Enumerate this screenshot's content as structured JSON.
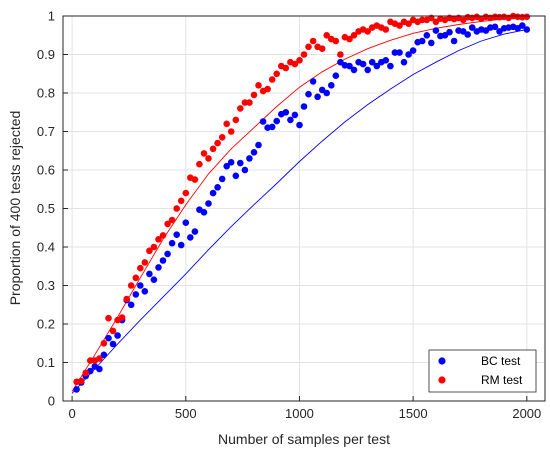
{
  "chart_data": {
    "type": "scatter",
    "title": "",
    "xlabel": "Number of samples per test",
    "ylabel": "Proportion of 400 tests rejected",
    "xlim": [
      -40,
      2080
    ],
    "ylim": [
      0,
      1
    ],
    "xticks": [
      0,
      500,
      1000,
      1500,
      2000
    ],
    "yticks": [
      0,
      0.1,
      0.2,
      0.3,
      0.4,
      0.5,
      0.6,
      0.7,
      0.8,
      0.9,
      1
    ],
    "xtick_labels": [
      "0",
      "500",
      "1000",
      "1500",
      "2000"
    ],
    "ytick_labels": [
      "0",
      "0.1",
      "0.2",
      "0.3",
      "0.4",
      "0.5",
      "0.6",
      "0.7",
      "0.8",
      "0.9",
      "1"
    ],
    "grid": true,
    "legend_position": "bottom-right",
    "series": [
      {
        "name": "BC test",
        "color": "#0000ff",
        "points": [
          [
            20,
            0.03
          ],
          [
            40,
            0.048
          ],
          [
            60,
            0.065
          ],
          [
            80,
            0.078
          ],
          [
            100,
            0.09
          ],
          [
            120,
            0.083
          ],
          [
            140,
            0.12
          ],
          [
            160,
            0.163
          ],
          [
            180,
            0.148
          ],
          [
            200,
            0.17
          ],
          [
            220,
            0.21
          ],
          [
            240,
            0.262
          ],
          [
            260,
            0.25
          ],
          [
            280,
            0.277
          ],
          [
            300,
            0.3
          ],
          [
            320,
            0.285
          ],
          [
            340,
            0.33
          ],
          [
            360,
            0.315
          ],
          [
            380,
            0.347
          ],
          [
            400,
            0.365
          ],
          [
            420,
            0.382
          ],
          [
            440,
            0.41
          ],
          [
            460,
            0.432
          ],
          [
            480,
            0.405
          ],
          [
            500,
            0.463
          ],
          [
            520,
            0.425
          ],
          [
            540,
            0.44
          ],
          [
            560,
            0.497
          ],
          [
            580,
            0.49
          ],
          [
            600,
            0.513
          ],
          [
            620,
            0.54
          ],
          [
            640,
            0.555
          ],
          [
            660,
            0.577
          ],
          [
            680,
            0.61
          ],
          [
            700,
            0.62
          ],
          [
            720,
            0.585
          ],
          [
            740,
            0.618
          ],
          [
            760,
            0.6
          ],
          [
            780,
            0.63
          ],
          [
            800,
            0.646
          ],
          [
            820,
            0.665
          ],
          [
            840,
            0.726
          ],
          [
            860,
            0.71
          ],
          [
            880,
            0.712
          ],
          [
            900,
            0.727
          ],
          [
            920,
            0.745
          ],
          [
            940,
            0.75
          ],
          [
            960,
            0.73
          ],
          [
            980,
            0.743
          ],
          [
            1000,
            0.717
          ],
          [
            1020,
            0.765
          ],
          [
            1040,
            0.797
          ],
          [
            1060,
            0.83
          ],
          [
            1080,
            0.79
          ],
          [
            1100,
            0.808
          ],
          [
            1120,
            0.8
          ],
          [
            1140,
            0.82
          ],
          [
            1160,
            0.845
          ],
          [
            1180,
            0.88
          ],
          [
            1200,
            0.872
          ],
          [
            1220,
            0.87
          ],
          [
            1240,
            0.86
          ],
          [
            1260,
            0.88
          ],
          [
            1280,
            0.875
          ],
          [
            1300,
            0.86
          ],
          [
            1320,
            0.88
          ],
          [
            1340,
            0.87
          ],
          [
            1360,
            0.88
          ],
          [
            1380,
            0.885
          ],
          [
            1400,
            0.87
          ],
          [
            1420,
            0.905
          ],
          [
            1440,
            0.905
          ],
          [
            1460,
            0.88
          ],
          [
            1480,
            0.9
          ],
          [
            1500,
            0.91
          ],
          [
            1520,
            0.932
          ],
          [
            1540,
            0.935
          ],
          [
            1560,
            0.95
          ],
          [
            1580,
            0.93
          ],
          [
            1600,
            0.962
          ],
          [
            1620,
            0.948
          ],
          [
            1640,
            0.95
          ],
          [
            1660,
            0.958
          ],
          [
            1680,
            0.935
          ],
          [
            1700,
            0.962
          ],
          [
            1720,
            0.96
          ],
          [
            1740,
            0.952
          ],
          [
            1760,
            0.97
          ],
          [
            1780,
            0.96
          ],
          [
            1800,
            0.965
          ],
          [
            1820,
            0.962
          ],
          [
            1840,
            0.97
          ],
          [
            1860,
            0.972
          ],
          [
            1880,
            0.96
          ],
          [
            1900,
            0.968
          ],
          [
            1920,
            0.97
          ],
          [
            1940,
            0.972
          ],
          [
            1960,
            0.968
          ],
          [
            1980,
            0.975
          ],
          [
            2000,
            0.965
          ]
        ],
        "fit": [
          [
            0,
            0.02
          ],
          [
            100,
            0.083
          ],
          [
            200,
            0.148
          ],
          [
            300,
            0.21
          ],
          [
            400,
            0.27
          ],
          [
            500,
            0.33
          ],
          [
            600,
            0.393
          ],
          [
            700,
            0.453
          ],
          [
            800,
            0.51
          ],
          [
            900,
            0.565
          ],
          [
            1000,
            0.622
          ],
          [
            1100,
            0.675
          ],
          [
            1200,
            0.725
          ],
          [
            1300,
            0.77
          ],
          [
            1400,
            0.81
          ],
          [
            1500,
            0.848
          ],
          [
            1600,
            0.88
          ],
          [
            1700,
            0.91
          ],
          [
            1800,
            0.935
          ],
          [
            1900,
            0.953
          ],
          [
            2000,
            0.965
          ]
        ]
      },
      {
        "name": "RM test",
        "color": "#ff0000",
        "points": [
          [
            20,
            0.05
          ],
          [
            40,
            0.052
          ],
          [
            60,
            0.073
          ],
          [
            80,
            0.105
          ],
          [
            100,
            0.105
          ],
          [
            120,
            0.11
          ],
          [
            140,
            0.15
          ],
          [
            160,
            0.215
          ],
          [
            180,
            0.182
          ],
          [
            200,
            0.21
          ],
          [
            220,
            0.217
          ],
          [
            240,
            0.265
          ],
          [
            260,
            0.3
          ],
          [
            280,
            0.32
          ],
          [
            300,
            0.345
          ],
          [
            320,
            0.36
          ],
          [
            340,
            0.39
          ],
          [
            360,
            0.4
          ],
          [
            380,
            0.42
          ],
          [
            400,
            0.43
          ],
          [
            420,
            0.46
          ],
          [
            440,
            0.47
          ],
          [
            460,
            0.5
          ],
          [
            480,
            0.52
          ],
          [
            500,
            0.54
          ],
          [
            520,
            0.58
          ],
          [
            540,
            0.575
          ],
          [
            560,
            0.615
          ],
          [
            580,
            0.643
          ],
          [
            600,
            0.63
          ],
          [
            620,
            0.655
          ],
          [
            640,
            0.67
          ],
          [
            660,
            0.685
          ],
          [
            680,
            0.72
          ],
          [
            700,
            0.7
          ],
          [
            720,
            0.73
          ],
          [
            740,
            0.76
          ],
          [
            760,
            0.775
          ],
          [
            780,
            0.775
          ],
          [
            800,
            0.795
          ],
          [
            820,
            0.82
          ],
          [
            840,
            0.805
          ],
          [
            860,
            0.81
          ],
          [
            880,
            0.835
          ],
          [
            900,
            0.85
          ],
          [
            920,
            0.87
          ],
          [
            940,
            0.865
          ],
          [
            960,
            0.88
          ],
          [
            980,
            0.875
          ],
          [
            1000,
            0.885
          ],
          [
            1020,
            0.9
          ],
          [
            1040,
            0.92
          ],
          [
            1060,
            0.935
          ],
          [
            1080,
            0.92
          ],
          [
            1100,
            0.915
          ],
          [
            1120,
            0.95
          ],
          [
            1140,
            0.94
          ],
          [
            1160,
            0.935
          ],
          [
            1180,
            0.9
          ],
          [
            1200,
            0.945
          ],
          [
            1220,
            0.94
          ],
          [
            1240,
            0.95
          ],
          [
            1260,
            0.96
          ],
          [
            1280,
            0.965
          ],
          [
            1300,
            0.96
          ],
          [
            1320,
            0.97
          ],
          [
            1340,
            0.975
          ],
          [
            1360,
            0.97
          ],
          [
            1380,
            0.965
          ],
          [
            1400,
            0.985
          ],
          [
            1420,
            0.98
          ],
          [
            1440,
            0.975
          ],
          [
            1460,
            0.985
          ],
          [
            1480,
            0.98
          ],
          [
            1500,
            0.99
          ],
          [
            1520,
            0.985
          ],
          [
            1540,
            0.99
          ],
          [
            1560,
            0.99
          ],
          [
            1580,
            0.995
          ],
          [
            1600,
            0.985
          ],
          [
            1620,
            0.993
          ],
          [
            1640,
            0.99
          ],
          [
            1660,
            0.995
          ],
          [
            1680,
            0.992
          ],
          [
            1700,
            0.995
          ],
          [
            1720,
            0.99
          ],
          [
            1740,
            0.997
          ],
          [
            1760,
            0.995
          ],
          [
            1780,
            0.998
          ],
          [
            1800,
            0.993
          ],
          [
            1820,
            0.998
          ],
          [
            1840,
            0.995
          ],
          [
            1860,
            0.998
          ],
          [
            1880,
            0.997
          ],
          [
            1900,
            0.998
          ],
          [
            1920,
            0.995
          ],
          [
            1940,
            1.0
          ],
          [
            1960,
            0.998
          ],
          [
            1980,
            0.997
          ],
          [
            2000,
            0.998
          ]
        ],
        "fit": [
          [
            0,
            0.025
          ],
          [
            100,
            0.12
          ],
          [
            200,
            0.218
          ],
          [
            300,
            0.32
          ],
          [
            400,
            0.42
          ],
          [
            500,
            0.51
          ],
          [
            600,
            0.59
          ],
          [
            700,
            0.655
          ],
          [
            800,
            0.71
          ],
          [
            900,
            0.765
          ],
          [
            1000,
            0.815
          ],
          [
            1100,
            0.855
          ],
          [
            1200,
            0.888
          ],
          [
            1300,
            0.915
          ],
          [
            1400,
            0.937
          ],
          [
            1500,
            0.955
          ],
          [
            1600,
            0.968
          ],
          [
            1700,
            0.978
          ],
          [
            1800,
            0.986
          ],
          [
            1900,
            0.992
          ],
          [
            2000,
            0.996
          ]
        ]
      }
    ]
  }
}
